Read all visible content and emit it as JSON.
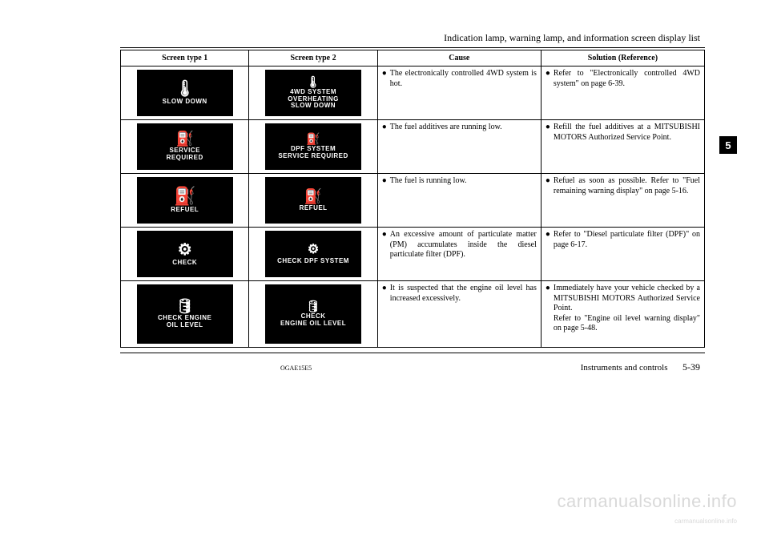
{
  "header": {
    "section_title": "Indication lamp, warning lamp, and information screen display list"
  },
  "table": {
    "columns": [
      "Screen type 1",
      "Screen type 2",
      "Cause",
      "Solution (Reference)"
    ],
    "rows": [
      {
        "icon1": {
          "glyph": "🌡",
          "glyph_size": 20,
          "label": "SLOW  DOWN",
          "height": "h58"
        },
        "icon2": {
          "glyph": "🌡",
          "glyph_size": 14,
          "label": "4WD SYSTEM\nOVERHEATING\nSLOW DOWN",
          "height": "h58"
        },
        "cause": "The electronically controlled 4WD system is hot.",
        "solution": "Refer to \"Electronically controlled 4WD system\" on page 6-39."
      },
      {
        "icon1": {
          "glyph": "⛽",
          "glyph_size": 18,
          "label": "SERVICE\nREQUIRED",
          "height": "h58"
        },
        "icon2": {
          "glyph": "⛽",
          "glyph_size": 14,
          "label": "DPF SYSTEM\nSERVICE REQUIRED",
          "height": "h58"
        },
        "cause": "The fuel additives are running low.",
        "solution": "Refill the fuel additives at a MITSUBISHI MOTORS Authorized Service Point."
      },
      {
        "icon1": {
          "glyph": "⛽",
          "glyph_size": 22,
          "label": "REFUEL",
          "height": "h58"
        },
        "icon2": {
          "glyph": "⛽",
          "glyph_size": 18,
          "label": "REFUEL",
          "height": "h58"
        },
        "cause": "The fuel is running low.",
        "solution": "Refuel as soon as possible. Refer to \"Fuel remaining warning display\" on page 5-16."
      },
      {
        "icon1": {
          "glyph": "⚙",
          "glyph_size": 20,
          "label": "CHECK",
          "height": "h58"
        },
        "icon2": {
          "glyph": "⚙",
          "glyph_size": 16,
          "label": "CHECK DPF SYSTEM",
          "height": "h58"
        },
        "cause": "An excessive amount of particulate matter (PM) accumulates inside the diesel particulate filter (DPF).",
        "solution": "Refer to \"Diesel particulate filter (DPF)\" on page 6-17."
      },
      {
        "icon1": {
          "glyph": "🛢",
          "glyph_size": 18,
          "label": "CHECK ENGINE\nOIL LEVEL",
          "height": "h72"
        },
        "icon2": {
          "glyph": "🛢",
          "glyph_size": 14,
          "label": "CHECK\nENGINE OIL LEVEL",
          "height": "h72"
        },
        "cause": "It is suspected that the engine oil level has increased excessively.",
        "solution": "Immediately have your vehicle checked by a MITSUBISHI MOTORS Authorized Service Point.\nRefer to \"Engine oil level warning display\" on page 5-48."
      }
    ]
  },
  "sidetab": "5",
  "footer": {
    "doc_code": "OGAE15E5",
    "chapter": "Instruments and controls",
    "page": "5-39"
  },
  "watermark": "carmanualsonline.info",
  "watermark_small": "carmanualsonline.info"
}
